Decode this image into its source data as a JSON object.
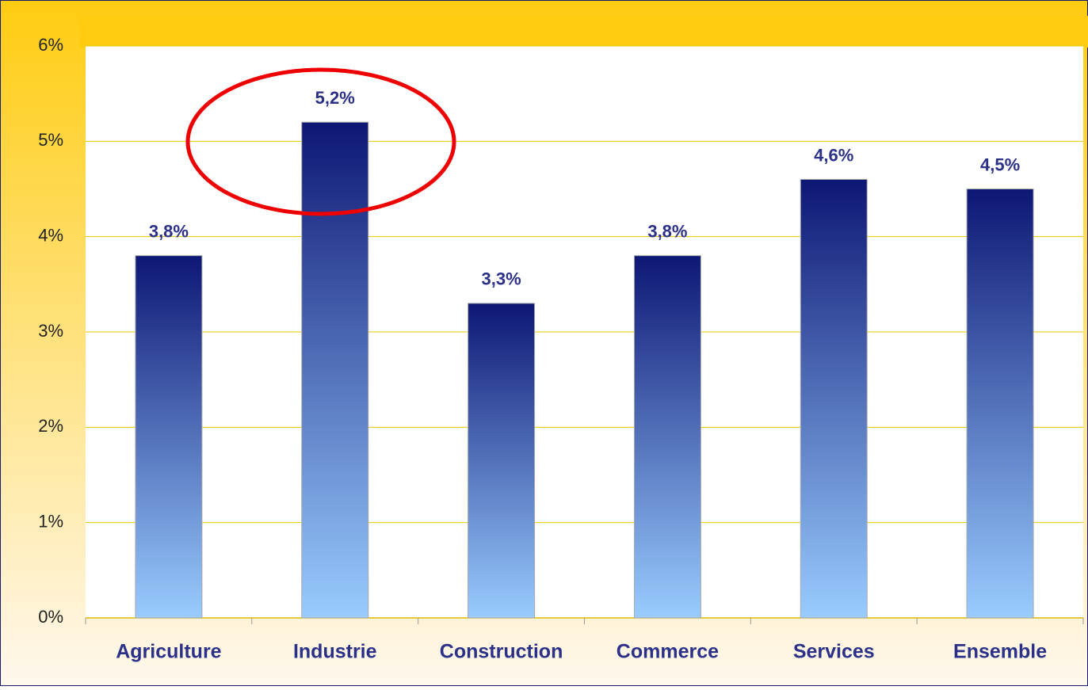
{
  "chart_data": {
    "type": "bar",
    "categories": [
      "Agriculture",
      "Industrie",
      "Construction",
      "Commerce",
      "Services",
      "Ensemble"
    ],
    "values": [
      3.8,
      5.2,
      3.3,
      3.8,
      4.6,
      4.5
    ],
    "value_labels": [
      "3,8%",
      "5,2%",
      "3,3%",
      "3,8%",
      "4,6%",
      "4,5%"
    ],
    "gradient": [
      "#0d1775",
      "#99ccff"
    ],
    "ylim": [
      0,
      6
    ],
    "yticks": [
      {
        "value": 0,
        "label": "0%"
      },
      {
        "value": 1,
        "label": "1%"
      },
      {
        "value": 2,
        "label": "2%"
      },
      {
        "value": 3,
        "label": "3%"
      },
      {
        "value": 4,
        "label": "4%"
      },
      {
        "value": 5,
        "label": "5%"
      },
      {
        "value": 6,
        "label": "6%"
      }
    ],
    "grid": true
  }
}
